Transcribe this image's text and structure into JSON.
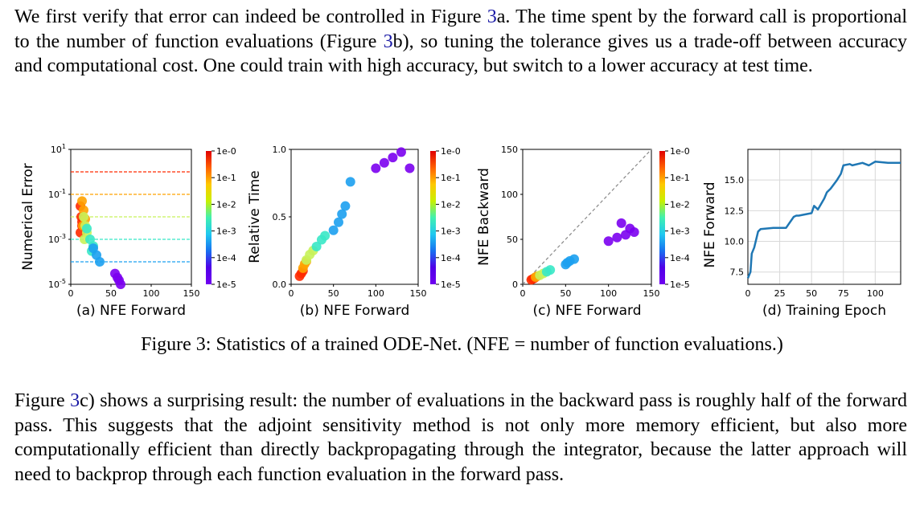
{
  "paragraph1": {
    "s1_a": "We first verify that error can indeed be controlled in Figure ",
    "s1_ref": "3",
    "s1_b": "a. The time spent by the forward call is proportional to the number of function evaluations (Figure ",
    "s1_ref2": "3",
    "s1_c": "b), so tuning the tolerance gives us a trade-off between accuracy and computational cost. One could train with high accuracy, but switch to a lower accuracy at test time."
  },
  "caption": "Figure 3: Statistics of a trained ODE-Net. (NFE = number of function evaluations.)",
  "paragraph2": {
    "s_a": "Figure ",
    "s_ref": "3",
    "s_b": "c) shows a surprising result: the number of evaluations in the backward pass is roughly half of the forward pass. This suggests that the adjoint sensitivity method is not only more memory efficient, but also more computationally efficient than directly backpropagating through the integrator, because the latter approach will need to backprop through each function evaluation in the forward pass."
  },
  "colorbar": {
    "labels": [
      "1e-0",
      "1e-1",
      "1e-2",
      "1e-3",
      "1e-4",
      "1e-5"
    ],
    "colors": [
      "#ff2a00",
      "#ffa200",
      "#c8f25a",
      "#38e8c6",
      "#1ca0f0",
      "#7b00f0"
    ]
  },
  "chart_data": [
    {
      "type": "scatter",
      "panel_label": "(a) NFE Forward",
      "ylabel": "Numerical Error",
      "xlim": [
        0,
        150
      ],
      "ylim_log10": [
        -5,
        1
      ],
      "y_scale": "log",
      "x_ticks": [
        "0",
        "50",
        "100",
        "150"
      ],
      "y_ticks": [
        "10^1",
        "10^-1",
        "10^-3",
        "10^-5"
      ],
      "tolerance_lines": [
        {
          "tolerance": "1e-0",
          "y": 1
        },
        {
          "tolerance": "1e-1",
          "y": 0.1
        },
        {
          "tolerance": "1e-2",
          "y": 0.01
        },
        {
          "tolerance": "1e-3",
          "y": 0.001
        },
        {
          "tolerance": "1e-4",
          "y": 0.0001
        }
      ],
      "series": [
        {
          "name": "1e-0",
          "points": [
            [
              12,
              0.03
            ],
            [
              13,
              0.01
            ],
            [
              14,
              0.004
            ],
            [
              12,
              0.002
            ],
            [
              14,
              0.006
            ]
          ]
        },
        {
          "name": "1e-1",
          "points": [
            [
              14,
              0.05
            ],
            [
              16,
              0.02
            ],
            [
              18,
              0.008
            ],
            [
              15,
              0.004
            ]
          ]
        },
        {
          "name": "1e-2",
          "points": [
            [
              16,
              0.01
            ],
            [
              18,
              0.004
            ],
            [
              20,
              0.002
            ],
            [
              17,
              0.001
            ]
          ]
        },
        {
          "name": "1e-3",
          "points": [
            [
              20,
              0.003
            ],
            [
              24,
              0.001
            ],
            [
              28,
              0.0005
            ],
            [
              26,
              0.0003
            ]
          ]
        },
        {
          "name": "1e-4",
          "points": [
            [
              28,
              0.0004
            ],
            [
              32,
              0.0002
            ],
            [
              36,
              0.0001
            ]
          ]
        },
        {
          "name": "1e-5",
          "points": [
            [
              55,
              3e-05
            ],
            [
              60,
              1.5e-05
            ],
            [
              62,
              1e-05
            ],
            [
              58,
              2e-05
            ]
          ]
        }
      ]
    },
    {
      "type": "scatter",
      "panel_label": "(b) NFE Forward",
      "ylabel": "Relative Time",
      "xlim": [
        0,
        150
      ],
      "ylim": [
        0,
        1
      ],
      "x_ticks": [
        "0",
        "50",
        "100",
        "150"
      ],
      "y_ticks": [
        "0.0",
        "0.5",
        "1.0"
      ],
      "series": [
        {
          "name": "1e-0",
          "points": [
            [
              10,
              0.06
            ],
            [
              12,
              0.08
            ],
            [
              14,
              0.1
            ]
          ]
        },
        {
          "name": "1e-1",
          "points": [
            [
              14,
              0.12
            ],
            [
              16,
              0.15
            ],
            [
              18,
              0.17
            ]
          ]
        },
        {
          "name": "1e-2",
          "points": [
            [
              18,
              0.18
            ],
            [
              22,
              0.22
            ],
            [
              26,
              0.25
            ]
          ]
        },
        {
          "name": "1e-3",
          "points": [
            [
              30,
              0.28
            ],
            [
              36,
              0.33
            ],
            [
              40,
              0.36
            ]
          ]
        },
        {
          "name": "1e-4",
          "points": [
            [
              50,
              0.4
            ],
            [
              56,
              0.46
            ],
            [
              60,
              0.52
            ],
            [
              64,
              0.58
            ],
            [
              70,
              0.76
            ]
          ]
        },
        {
          "name": "1e-5",
          "points": [
            [
              100,
              0.86
            ],
            [
              110,
              0.9
            ],
            [
              120,
              0.94
            ],
            [
              130,
              0.98
            ],
            [
              140,
              0.86
            ]
          ]
        }
      ]
    },
    {
      "type": "scatter",
      "panel_label": "(c) NFE Forward",
      "ylabel": "NFE Backward",
      "xlim": [
        0,
        150
      ],
      "ylim": [
        0,
        150
      ],
      "x_ticks": [
        "0",
        "50",
        "100",
        "150"
      ],
      "y_ticks": [
        "0",
        "50",
        "100",
        "150"
      ],
      "reference_line": "y = x",
      "series": [
        {
          "name": "1e-0",
          "points": [
            [
              10,
              5
            ],
            [
              12,
              6
            ],
            [
              14,
              7
            ]
          ]
        },
        {
          "name": "1e-1",
          "points": [
            [
              15,
              8
            ],
            [
              17,
              9
            ]
          ]
        },
        {
          "name": "1e-2",
          "points": [
            [
              20,
              10
            ],
            [
              24,
              12
            ]
          ]
        },
        {
          "name": "1e-3",
          "points": [
            [
              28,
              14
            ],
            [
              32,
              16
            ]
          ]
        },
        {
          "name": "1e-4",
          "points": [
            [
              50,
              22
            ],
            [
              55,
              26
            ],
            [
              60,
              28
            ],
            [
              52,
              24
            ]
          ]
        },
        {
          "name": "1e-5",
          "points": [
            [
              100,
              48
            ],
            [
              110,
              52
            ],
            [
              120,
              55
            ],
            [
              130,
              58
            ],
            [
              115,
              68
            ],
            [
              125,
              62
            ]
          ]
        }
      ]
    },
    {
      "type": "line",
      "panel_label": "(d) Training Epoch",
      "ylabel": "NFE Forward",
      "xlim": [
        0,
        120
      ],
      "ylim": [
        6.5,
        17.5
      ],
      "x_ticks": [
        "0",
        "25",
        "50",
        "75",
        "100"
      ],
      "y_ticks": [
        "7.5",
        "10.0",
        "12.5",
        "15.0"
      ],
      "x": [
        0,
        2,
        3,
        5,
        8,
        10,
        20,
        30,
        36,
        38,
        40,
        50,
        52,
        55,
        60,
        62,
        65,
        70,
        73,
        75,
        80,
        82,
        90,
        95,
        100,
        110,
        120
      ],
      "y": [
        7.0,
        7.5,
        9.0,
        9.5,
        10.8,
        11.0,
        11.1,
        11.1,
        12.0,
        12.1,
        12.1,
        12.3,
        12.9,
        12.6,
        13.5,
        14.0,
        14.3,
        15.0,
        15.5,
        16.2,
        16.3,
        16.2,
        16.4,
        16.2,
        16.5,
        16.4,
        16.4
      ]
    }
  ]
}
